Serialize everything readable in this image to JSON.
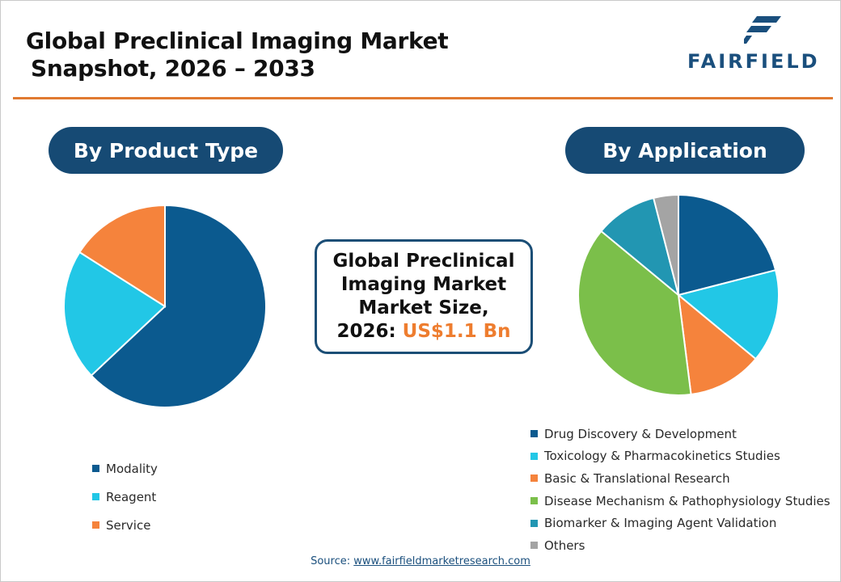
{
  "title": {
    "line1": "Global Preclinical Imaging Market",
    "line2": "Snapshot, 2026 – 2033"
  },
  "logo": {
    "text": "FAIRFIELD",
    "color": "#1a4f7d",
    "mark_color": "#1a4f7d"
  },
  "colors": {
    "accent_rule": "#e07a31",
    "pill": "#164a74",
    "highlight": "#ee7d2f",
    "box_border": "#1b4e76"
  },
  "center_box": {
    "line1": "Global Preclinical",
    "line2": "Imaging Market",
    "line3": "Market Size,",
    "line4_label": "2026:",
    "line4_value": "US$1.1 Bn"
  },
  "source": {
    "label": "Source:",
    "link_text": "www.fairfieldmarketresearch.com"
  },
  "chart_data": [
    {
      "type": "pie",
      "title": "By Product Type",
      "start_angle_deg": 0,
      "direction": "clockwise",
      "slices": [
        {
          "label": "Modality",
          "value": 63,
          "color": "#0b5a8f"
        },
        {
          "label": "Reagent",
          "value": 21,
          "color": "#22c7e6"
        },
        {
          "label": "Service",
          "value": 16,
          "color": "#f5833c"
        }
      ],
      "legend_position": "bottom-left"
    },
    {
      "type": "pie",
      "title": "By Application",
      "start_angle_deg": 0,
      "direction": "clockwise",
      "slices": [
        {
          "label": "Drug Discovery & Development",
          "value": 21,
          "color": "#0b5a8f"
        },
        {
          "label": "Toxicology & Pharmacokinetics Studies",
          "value": 15,
          "color": "#22c7e6"
        },
        {
          "label": "Basic & Translational Research",
          "value": 12,
          "color": "#f5833c"
        },
        {
          "label": "Disease Mechanism & Pathophysiology Studies",
          "value": 38,
          "color": "#7bbf4a"
        },
        {
          "label": "Biomarker & Imaging Agent Validation",
          "value": 10,
          "color": "#2296b2"
        },
        {
          "label": "Others",
          "value": 4,
          "color": "#a4a4a4"
        }
      ],
      "legend_position": "bottom-right"
    }
  ]
}
